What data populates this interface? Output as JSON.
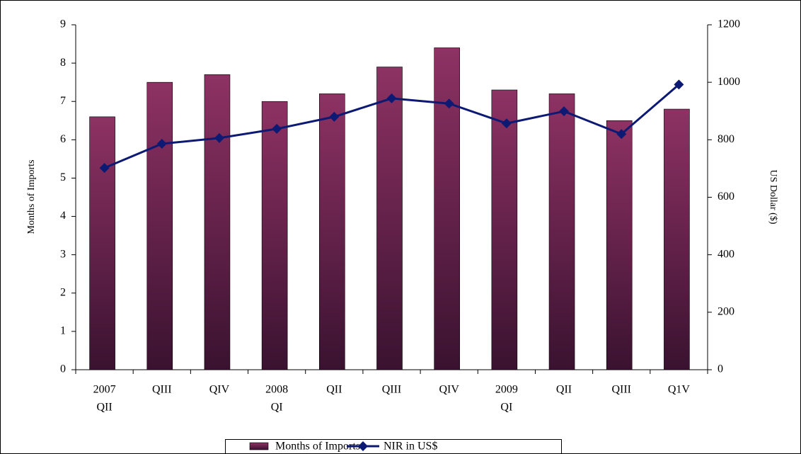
{
  "chart_data": {
    "type": "bar-line",
    "categories": [
      [
        "2007",
        "QII"
      ],
      [
        "QIII"
      ],
      [
        "QIV"
      ],
      [
        "2008",
        "QI"
      ],
      [
        "QII"
      ],
      [
        "QIII"
      ],
      [
        "QIV"
      ],
      [
        "2009",
        "QI"
      ],
      [
        "QII"
      ],
      [
        "QIII"
      ],
      [
        "Q1V"
      ]
    ],
    "series": [
      {
        "name": "Months of Imports",
        "type": "bar",
        "color": "#8e3264",
        "values": [
          6.6,
          7.5,
          7.7,
          7.0,
          7.2,
          7.9,
          8.4,
          7.3,
          7.2,
          6.5,
          6.8
        ]
      },
      {
        "name": "NIR in US$",
        "type": "line",
        "axis": "y2",
        "color": "#0d1a73",
        "values": [
          702,
          786,
          806,
          838,
          880,
          944,
          926,
          857,
          899,
          820,
          992
        ]
      }
    ],
    "ylabel": "Months of Imports",
    "y2label": "US Dollar ($)",
    "ylim": [
      0,
      9
    ],
    "yticks": [
      0,
      1,
      2,
      3,
      4,
      5,
      6,
      7,
      8,
      9
    ],
    "y2lim": [
      0,
      1200
    ],
    "y2ticks": [
      0,
      200,
      400,
      600,
      800,
      1000,
      1200
    ],
    "grid": false,
    "legend": "bottom"
  }
}
